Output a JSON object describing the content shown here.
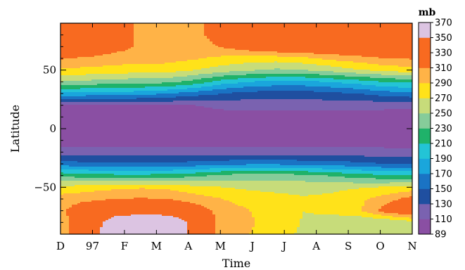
{
  "chart_data": {
    "type": "heatmap",
    "subtype": "filled-contour",
    "title": "",
    "xlabel": "Time",
    "ylabel": "Latitude",
    "x_ticks": [
      "D",
      "97",
      "F",
      "M",
      "A",
      "M",
      "J",
      "J",
      "A",
      "S",
      "O",
      "N"
    ],
    "y_ticks": [
      {
        "value": 50,
        "label": "50"
      },
      {
        "value": 0,
        "label": "0"
      },
      {
        "value": -50,
        "label": "−50"
      }
    ],
    "ylim": [
      -90,
      90
    ],
    "colorbar": {
      "unit": "mb",
      "levels": [
        89,
        110,
        130,
        150,
        170,
        190,
        210,
        230,
        250,
        270,
        290,
        310,
        330,
        350,
        370
      ],
      "labels": [
        "89",
        "110",
        "130",
        "150",
        "170",
        "190",
        "210",
        "230",
        "250",
        "270",
        "290",
        "310",
        "330",
        "350",
        "370"
      ],
      "colors": [
        "#8a4fa3",
        "#7a62b0",
        "#1f4fa0",
        "#1a73c4",
        "#1aa6dc",
        "#23c4d6",
        "#1fb26a",
        "#86cc9a",
        "#c7dc7a",
        "#ffe21a",
        "#ffb347",
        "#f86a20",
        "#f86a20",
        "#dcc4e2"
      ]
    },
    "grid": false,
    "legend_placement": "right",
    "latitudes": [
      -90,
      -80,
      -70,
      -60,
      -50,
      -40,
      -30,
      -20,
      -10,
      0,
      10,
      20,
      30,
      40,
      50,
      60,
      70,
      80,
      90
    ],
    "field": [
      [
        300,
        330,
        375,
        375,
        375,
        340,
        300,
        290,
        280,
        265,
        258,
        255,
        258,
        262
      ],
      [
        300,
        330,
        365,
        372,
        372,
        340,
        300,
        292,
        282,
        268,
        260,
        250,
        250,
        262
      ],
      [
        305,
        330,
        335,
        340,
        335,
        325,
        300,
        290,
        282,
        270,
        275,
        285,
        320,
        340
      ],
      [
        300,
        305,
        310,
        312,
        310,
        300,
        290,
        282,
        276,
        272,
        275,
        285,
        300,
        320
      ],
      [
        275,
        280,
        285,
        288,
        285,
        276,
        270,
        266,
        264,
        264,
        265,
        268,
        272,
        276
      ],
      [
        225,
        220,
        216,
        215,
        218,
        225,
        236,
        240,
        240,
        236,
        228,
        220,
        213,
        212
      ],
      [
        160,
        155,
        155,
        155,
        155,
        158,
        162,
        166,
        166,
        163,
        160,
        156,
        150,
        150
      ],
      [
        118,
        118,
        118,
        118,
        118,
        118,
        120,
        118,
        118,
        118,
        118,
        118,
        116,
        116
      ],
      [
        100,
        100,
        100,
        100,
        100,
        100,
        100,
        100,
        100,
        100,
        100,
        100,
        100,
        100
      ],
      [
        98,
        98,
        98,
        98,
        98,
        98,
        98,
        98,
        98,
        98,
        98,
        98,
        98,
        98
      ],
      [
        100,
        100,
        100,
        100,
        100,
        100,
        100,
        100,
        100,
        100,
        100,
        100,
        100,
        100
      ],
      [
        110,
        110,
        110,
        110,
        110,
        110,
        116,
        118,
        118,
        120,
        118,
        118,
        116,
        116
      ],
      [
        185,
        183,
        182,
        178,
        170,
        160,
        150,
        142,
        140,
        140,
        145,
        150,
        160,
        165
      ],
      [
        250,
        245,
        240,
        238,
        236,
        222,
        200,
        190,
        184,
        185,
        192,
        200,
        212,
        215
      ],
      [
        285,
        285,
        282,
        280,
        278,
        270,
        260,
        252,
        246,
        250,
        258,
        268,
        276,
        282
      ],
      [
        312,
        306,
        300,
        300,
        298,
        292,
        285,
        281,
        280,
        285,
        295,
        302,
        310,
        312
      ],
      [
        345,
        340,
        320,
        306,
        300,
        302,
        312,
        325,
        335,
        340,
        340,
        340,
        340,
        340
      ],
      [
        330,
        345,
        335,
        300,
        298,
        305,
        320,
        338,
        340,
        345,
        350,
        340,
        340,
        340
      ],
      [
        345,
        350,
        340,
        300,
        298,
        305,
        320,
        338,
        340,
        345,
        350,
        340,
        340,
        340
      ]
    ],
    "time_samples": 14
  }
}
